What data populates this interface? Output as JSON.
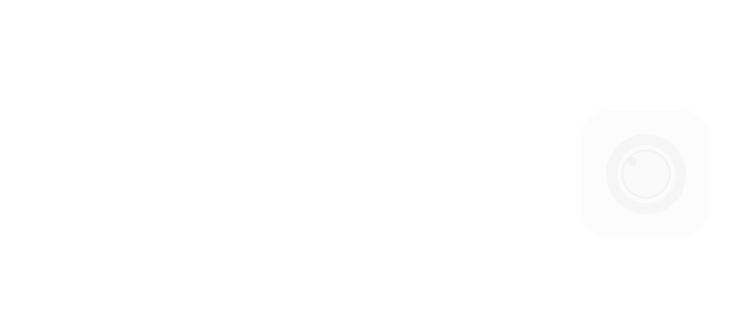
{
  "screen": {
    "background_color": "#ffffff"
  },
  "app_icon": {
    "icon": "camera-lens-icon",
    "tile_color": "#fcfcfc",
    "ring_color": "#f6f6f6",
    "inner_color": "#fafafa"
  }
}
